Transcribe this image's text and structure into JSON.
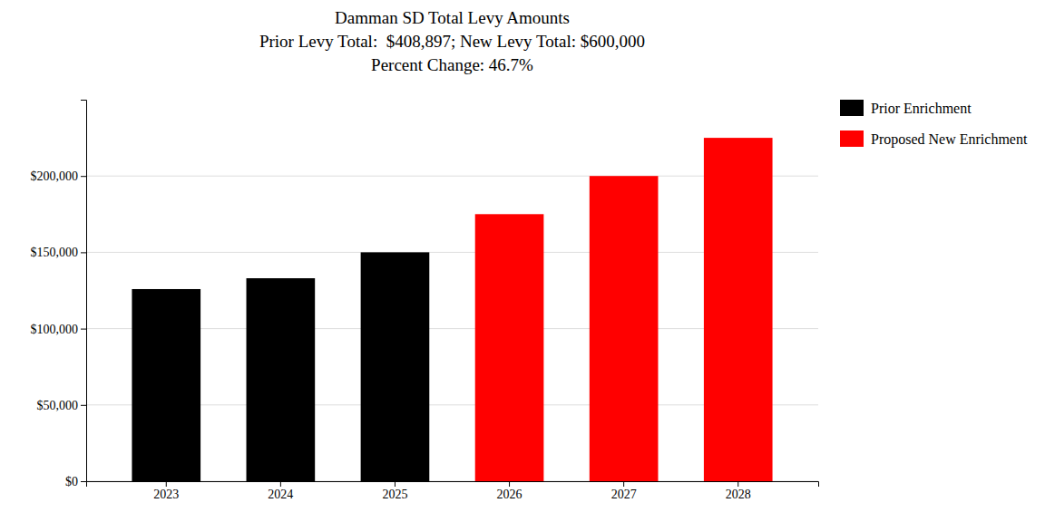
{
  "chart_data": {
    "type": "bar",
    "title": "Damman SD Total Levy Amounts\nPrior Levy Total:  $408,897; New Levy Total: $600,000\nPercent Change: 46.7%",
    "categories": [
      "2023",
      "2024",
      "2025",
      "2026",
      "2027",
      "2028"
    ],
    "series": [
      {
        "name": "Prior Enrichment",
        "color": "#000000",
        "values": [
          125897,
          133000,
          150000,
          null,
          null,
          null
        ]
      },
      {
        "name": "Proposed New Enrichment",
        "color": "#ff0000",
        "values": [
          null,
          null,
          null,
          175000,
          200000,
          225000
        ]
      }
    ],
    "ylim": [
      0,
      250000
    ],
    "yticks": [
      {
        "value": 0,
        "label": "$0"
      },
      {
        "value": 50000,
        "label": "$50,000"
      },
      {
        "value": 100000,
        "label": "$100,000"
      },
      {
        "value": 150000,
        "label": "$150,000"
      },
      {
        "value": 200000,
        "label": "$200,000"
      }
    ],
    "grid": true,
    "legend": "right"
  }
}
